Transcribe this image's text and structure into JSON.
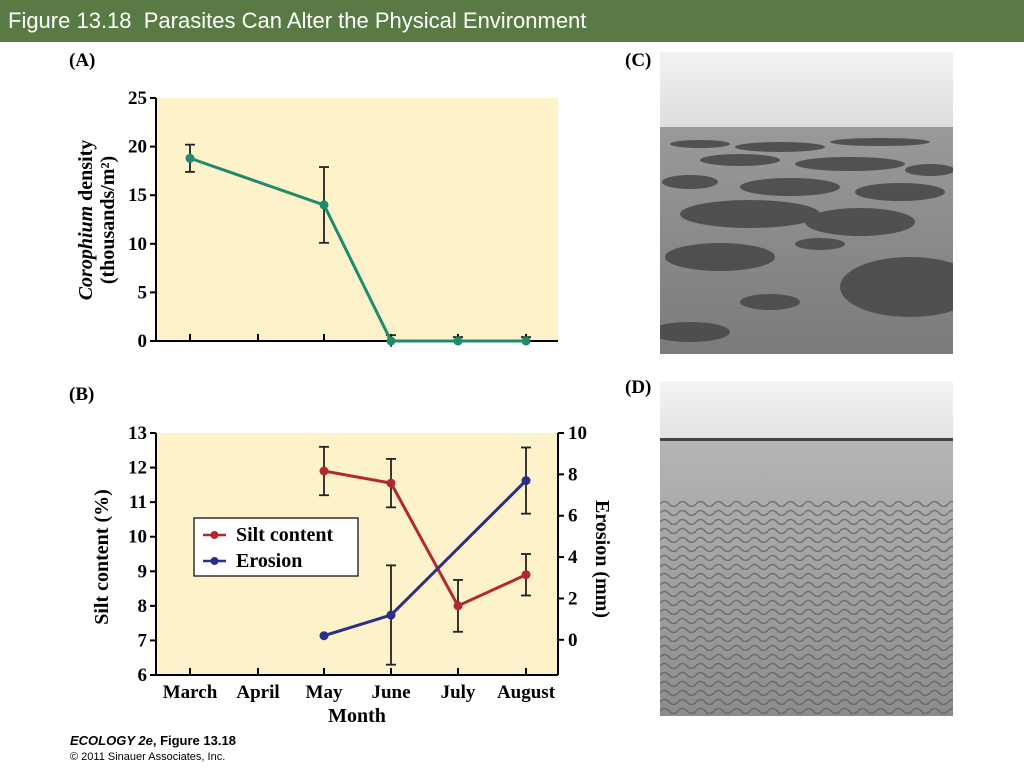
{
  "header": {
    "title": "Figure 13.18  Parasites Can Alter the Physical Environment"
  },
  "panels": {
    "a": "(A)",
    "b": "(B)",
    "c": "(C)",
    "d": "(D)"
  },
  "footer": {
    "book": "ECOLOGY 2e",
    "figure": ", Figure 13.18",
    "copyright": "© 2011 Sinauer Associates, Inc."
  },
  "colors": {
    "background": "#fdf2c9",
    "corophium": "#1e8a6e",
    "silt": "#b3282e",
    "erosion": "#2a2f8a",
    "header_bg": "#5a7a45"
  },
  "chart_data": [
    {
      "type": "line",
      "panel": "(A)",
      "categories": [
        "March",
        "April",
        "May",
        "June",
        "July",
        "August"
      ],
      "ylabel_italic": "Corophium",
      "ylabel_rest": " density",
      "ylabel_line2": "(thousands/m²)",
      "ylim": [
        0,
        25
      ],
      "yticks": [
        "0",
        "5",
        "10",
        "15",
        "20",
        "25"
      ],
      "series": [
        {
          "points": [
            {
              "x": "March",
              "y": 18.8,
              "err": 1.4
            },
            {
              "x": "May",
              "y": 14.0,
              "err": 3.9
            },
            {
              "x": "June",
              "y": 0,
              "err": 0.6
            },
            {
              "x": "July",
              "y": 0,
              "err": 0.4
            },
            {
              "x": "August",
              "y": 0,
              "err": 0.4
            }
          ]
        }
      ]
    },
    {
      "type": "line",
      "panel": "(B)",
      "categories": [
        "March",
        "April",
        "May",
        "June",
        "July",
        "August"
      ],
      "xlabel": "Month",
      "ylabel_left": "Silt content (%)",
      "ylabel_right": "Erosion (mm)",
      "ylim_left": [
        6,
        13
      ],
      "ylim_right": [
        -1.7,
        10
      ],
      "yticks_left": [
        "6",
        "7",
        "8",
        "9",
        "10",
        "11",
        "12",
        "13"
      ],
      "yticks_right": [
        "0",
        "2",
        "4",
        "6",
        "8",
        "10"
      ],
      "legend_position": "center-left",
      "series": [
        {
          "name": "Silt content",
          "axis": "left",
          "points": [
            {
              "x": "May",
              "y": 11.9,
              "err": 0.7
            },
            {
              "x": "June",
              "y": 11.55,
              "err": 0.7
            },
            {
              "x": "July",
              "y": 8.0,
              "err": 0.75
            },
            {
              "x": "August",
              "y": 8.9,
              "err": 0.6
            }
          ]
        },
        {
          "name": "Erosion",
          "axis": "right",
          "points": [
            {
              "x": "May",
              "y": 0.2,
              "err": 0
            },
            {
              "x": "June",
              "y": 1.2,
              "err": 2.4
            },
            {
              "x": "August",
              "y": 7.7,
              "err": 1.6
            }
          ]
        }
      ]
    }
  ]
}
